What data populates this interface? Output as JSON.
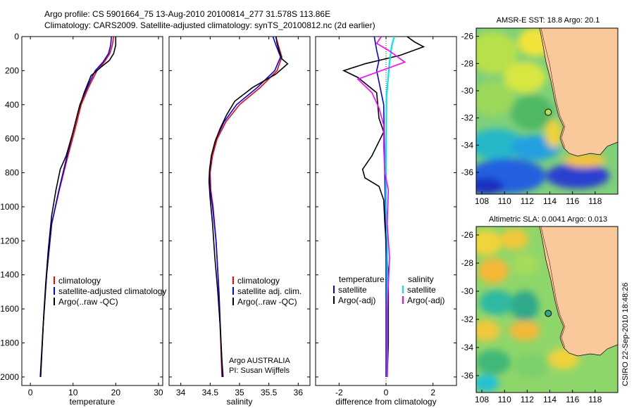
{
  "header": {
    "line1": "Argo profile: CS 5901664_75 13-Aug-2010 20100814_277 31.578S 113.86E",
    "line2": "Climatology: CARS2009. Satellite-adjusted climatology: synTS_20100812.nc (2d earlier)"
  },
  "footer": {
    "vertical_stamp": "CSIRO 22-Sep-2010 18:48:26"
  },
  "colors": {
    "climatology": "#ff0000",
    "satellite": "#0000ff",
    "argo": "#000000",
    "sal_satellite": "#00e5ee",
    "sal_argo": "#ff00ff",
    "land": "#f9c89b"
  },
  "chart_data": [
    {
      "type": "line",
      "name": "temperature-panel",
      "xlabel": "temperature",
      "xlim": [
        -2,
        31
      ],
      "ylim": [
        0,
        2050
      ],
      "xticks": [
        0,
        10,
        20,
        30
      ],
      "yticks": [
        0,
        200,
        400,
        600,
        800,
        1000,
        1200,
        1400,
        1600,
        1800,
        2000
      ],
      "legend": [
        {
          "label": "climatology",
          "color": "#ff0000"
        },
        {
          "label": "satellite-adjusted climatology",
          "color": "#0000ff"
        },
        {
          "label": "Argo(..raw -QC)",
          "color": "#000000"
        }
      ],
      "series": [
        {
          "name": "climatology",
          "color": "#ff0000",
          "points": [
            [
              19.5,
              0
            ],
            [
              19.2,
              50
            ],
            [
              18.6,
              100
            ],
            [
              17.3,
              150
            ],
            [
              15.6,
              200
            ],
            [
              13.6,
              300
            ],
            [
              11.9,
              400
            ],
            [
              10.4,
              550
            ],
            [
              8.8,
              700
            ],
            [
              6.8,
              900
            ],
            [
              5.0,
              1100
            ],
            [
              3.8,
              1400
            ],
            [
              3.0,
              1700
            ],
            [
              2.4,
              2000
            ]
          ]
        },
        {
          "name": "satellite",
          "color": "#0000ff",
          "points": [
            [
              19.0,
              0
            ],
            [
              18.8,
              50
            ],
            [
              18.3,
              100
            ],
            [
              17.0,
              150
            ],
            [
              15.2,
              200
            ],
            [
              13.3,
              300
            ],
            [
              11.6,
              400
            ],
            [
              10.1,
              550
            ],
            [
              8.6,
              700
            ],
            [
              6.7,
              900
            ],
            [
              5.0,
              1100
            ],
            [
              3.8,
              1400
            ],
            [
              3.0,
              1700
            ],
            [
              2.3,
              2000
            ]
          ]
        },
        {
          "name": "Argo",
          "color": "#000000",
          "points": [
            [
              20.0,
              0
            ],
            [
              20.0,
              50
            ],
            [
              19.5,
              100
            ],
            [
              18.5,
              140
            ],
            [
              16.5,
              180
            ],
            [
              14.2,
              230
            ],
            [
              12.6,
              330
            ],
            [
              11.3,
              430
            ],
            [
              10.0,
              560
            ],
            [
              8.4,
              700
            ],
            [
              7.0,
              780
            ],
            [
              6.0,
              900
            ],
            [
              5.0,
              1050
            ],
            [
              4.2,
              1250
            ],
            [
              3.6,
              1450
            ],
            [
              3.1,
              1650
            ],
            [
              2.7,
              1850
            ],
            [
              2.4,
              2000
            ]
          ]
        }
      ]
    },
    {
      "type": "line",
      "name": "salinity-panel",
      "xlabel": "salinity",
      "xlim": [
        33.8,
        36.2
      ],
      "ylim": [
        0,
        2050
      ],
      "xticks": [
        34,
        34.5,
        35,
        35.5,
        36
      ],
      "legend": [
        {
          "label": "climatology",
          "color": "#ff0000"
        },
        {
          "label": "satellite adj. clim.",
          "color": "#0000ff"
        },
        {
          "label": "Argo(..raw -QC)",
          "color": "#000000"
        }
      ],
      "annotation": [
        "Argo AUSTRALIA",
        "PI: Susan Wijffels"
      ],
      "series": [
        {
          "name": "climatology",
          "color": "#ff0000",
          "points": [
            [
              35.62,
              0
            ],
            [
              35.66,
              50
            ],
            [
              35.72,
              120
            ],
            [
              35.64,
              200
            ],
            [
              35.35,
              300
            ],
            [
              35.0,
              400
            ],
            [
              34.77,
              500
            ],
            [
              34.62,
              600
            ],
            [
              34.54,
              700
            ],
            [
              34.5,
              800
            ],
            [
              34.51,
              900
            ],
            [
              34.55,
              1000
            ],
            [
              34.6,
              1200
            ],
            [
              34.65,
              1500
            ],
            [
              34.7,
              2000
            ]
          ]
        },
        {
          "name": "satellite",
          "color": "#0000ff",
          "points": [
            [
              35.57,
              0
            ],
            [
              35.62,
              50
            ],
            [
              35.7,
              120
            ],
            [
              35.6,
              200
            ],
            [
              35.3,
              300
            ],
            [
              34.95,
              400
            ],
            [
              34.74,
              500
            ],
            [
              34.6,
              600
            ],
            [
              34.52,
              700
            ],
            [
              34.49,
              800
            ],
            [
              34.5,
              900
            ],
            [
              34.54,
              1000
            ],
            [
              34.6,
              1200
            ],
            [
              34.65,
              1500
            ],
            [
              34.71,
              2000
            ]
          ]
        },
        {
          "name": "Argo",
          "color": "#000000",
          "points": [
            [
              35.62,
              0
            ],
            [
              35.64,
              40
            ],
            [
              35.68,
              90
            ],
            [
              35.72,
              130
            ],
            [
              35.82,
              160
            ],
            [
              35.62,
              220
            ],
            [
              35.22,
              300
            ],
            [
              34.92,
              380
            ],
            [
              34.78,
              460
            ],
            [
              34.67,
              540
            ],
            [
              34.58,
              620
            ],
            [
              34.52,
              700
            ],
            [
              34.49,
              780
            ],
            [
              34.48,
              850
            ],
            [
              34.5,
              950
            ],
            [
              34.54,
              1100
            ],
            [
              34.58,
              1300
            ],
            [
              34.63,
              1500
            ],
            [
              34.67,
              1700
            ],
            [
              34.7,
              1900
            ],
            [
              34.72,
              2000
            ]
          ]
        }
      ]
    },
    {
      "type": "line",
      "name": "difference-panel",
      "xlabel": "difference from climatology",
      "xlim": [
        -3,
        3
      ],
      "ylim": [
        0,
        2050
      ],
      "xticks": [
        -2,
        0,
        2
      ],
      "legend": [
        {
          "label": "temperature",
          "color": ""
        },
        {
          "label": "satellite",
          "color": "#0000ff"
        },
        {
          "label": "Argo(-adj)",
          "color": "#000000"
        },
        {
          "label": "salinity",
          "color": ""
        },
        {
          "label": "satellite",
          "color": "#00e5ee"
        },
        {
          "label": "Argo(-adj)",
          "color": "#ff00ff"
        }
      ],
      "series": [
        {
          "name": "temperature satellite",
          "color": "#0000ff",
          "points": [
            [
              -0.5,
              0
            ],
            [
              -0.4,
              80
            ],
            [
              -0.3,
              140
            ],
            [
              -0.4,
              200
            ],
            [
              -0.1,
              400
            ],
            [
              0,
              1300
            ],
            [
              0,
              2000
            ]
          ]
        },
        {
          "name": "temperature Argo",
          "color": "#000000",
          "points": [
            [
              0.9,
              0
            ],
            [
              1.2,
              30
            ],
            [
              1.6,
              60
            ],
            [
              0.6,
              110
            ],
            [
              -0.9,
              160
            ],
            [
              -1.8,
              200
            ],
            [
              -1.2,
              240
            ],
            [
              -0.4,
              330
            ],
            [
              -0.3,
              480
            ],
            [
              -0.1,
              560
            ],
            [
              -0.6,
              700
            ],
            [
              -1.0,
              780
            ],
            [
              -0.9,
              830
            ],
            [
              -0.3,
              880
            ],
            [
              -0.1,
              960
            ],
            [
              -0.05,
              1100
            ],
            [
              0.1,
              1400
            ],
            [
              0.1,
              1800
            ],
            [
              0.05,
              2000
            ]
          ]
        },
        {
          "name": "salinity satellite",
          "color": "#00e5ee",
          "points": [
            [
              0.35,
              0
            ],
            [
              0.25,
              50
            ],
            [
              0.15,
              150
            ],
            [
              0.02,
              350
            ],
            [
              0,
              700
            ],
            [
              0,
              1000
            ],
            [
              0.05,
              1200
            ],
            [
              0.05,
              2000
            ]
          ]
        },
        {
          "name": "salinity Argo",
          "color": "#ff00ff",
          "points": [
            [
              -0.2,
              0
            ],
            [
              -0.4,
              40
            ],
            [
              0.1,
              80
            ],
            [
              0.8,
              150
            ],
            [
              -0.2,
              200
            ],
            [
              -1.2,
              250
            ],
            [
              -0.6,
              330
            ],
            [
              -0.3,
              420
            ],
            [
              -0.1,
              520
            ],
            [
              -0.1,
              650
            ],
            [
              -0.05,
              800
            ],
            [
              0.1,
              900
            ],
            [
              0.05,
              1100
            ],
            [
              0.15,
              1300
            ],
            [
              0.05,
              1600
            ],
            [
              0.05,
              2000
            ]
          ]
        }
      ]
    },
    {
      "type": "heatmap",
      "name": "sst-map",
      "title": "AMSR-E SST: 18.8 Argo: 20.1",
      "xticks": [
        108,
        110,
        112,
        114,
        116,
        118
      ],
      "yticks": [
        -26,
        -28,
        -30,
        -32,
        -34,
        -36
      ],
      "xlim": [
        107.5,
        120
      ],
      "ylim": [
        -37.6,
        -25.4
      ],
      "argo_point": {
        "lon": 113.86,
        "lat": -31.578
      }
    },
    {
      "type": "heatmap",
      "name": "sla-map",
      "title": "Altimetric SLA: 0.0041 Argo: 0.013",
      "xticks": [
        108,
        110,
        112,
        114,
        116,
        118
      ],
      "yticks": [
        -26,
        -28,
        -30,
        -32,
        -34,
        -36
      ],
      "xlim": [
        107.5,
        120
      ],
      "ylim": [
        -37.2,
        -25.4
      ],
      "argo_point": {
        "lon": 113.86,
        "lat": -31.578
      }
    }
  ]
}
